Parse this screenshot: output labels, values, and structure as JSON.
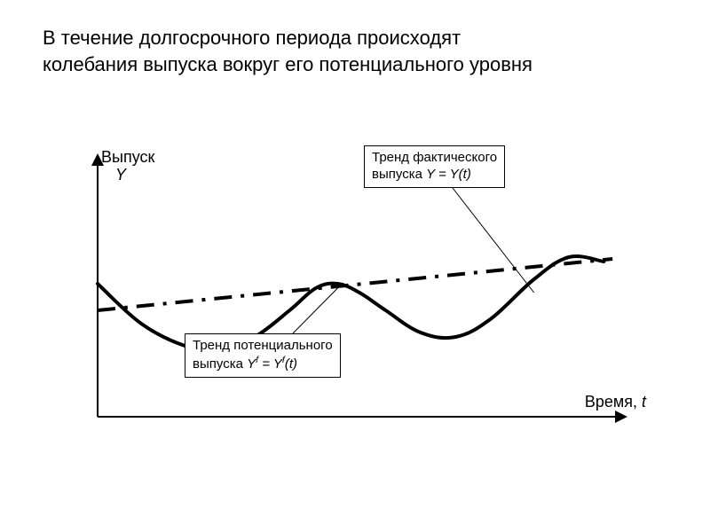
{
  "title": "В течение долгосрочного периода происходят\nколебания выпуска вокруг его потенциального уровня",
  "title_fontsize": 22,
  "title_color": "#000000",
  "chart": {
    "type": "line",
    "background_color": "#ffffff",
    "axis_color": "#000000",
    "axis_line_width": 2,
    "y_axis_label_top": "Выпуск",
    "y_axis_label_var": "Y",
    "x_axis_label": "Время,",
    "x_axis_label_var": "t",
    "axis_label_fontsize": 18,
    "xlim": [
      0,
      600
    ],
    "ylim": [
      0,
      260
    ],
    "series": {
      "actual": {
        "label_line1": "Тренд фактического",
        "label_line2_prefix": "выпуска ",
        "label_formula": "Y = Y(t)",
        "color": "#000000",
        "line_width": 4,
        "dash": "solid",
        "points": [
          [
            0,
            150
          ],
          [
            50,
            105
          ],
          [
            100,
            80
          ],
          [
            140,
            75
          ],
          [
            180,
            90
          ],
          [
            220,
            120
          ],
          [
            250,
            145
          ],
          [
            275,
            150
          ],
          [
            300,
            140
          ],
          [
            330,
            120
          ],
          [
            370,
            95
          ],
          [
            410,
            90
          ],
          [
            450,
            110
          ],
          [
            500,
            155
          ],
          [
            540,
            180
          ],
          [
            580,
            175
          ]
        ]
      },
      "potential": {
        "label_line1": "Тренд потенциального",
        "label_line2_prefix": "выпуска ",
        "label_formula": "Yᶠ = Yᶠ(t)",
        "color": "#000000",
        "line_width": 4,
        "dash": "dash-dot",
        "dash_pattern": "20 10 4 10",
        "start": [
          0,
          120
        ],
        "end": [
          590,
          178
        ]
      }
    },
    "legend": {
      "box_border": "#000000",
      "box_bg": "#ffffff",
      "fontsize": 15,
      "actual_pointer_from": [
        430,
        30
      ],
      "actual_pointer_to": [
        500,
        90
      ],
      "potential_pointer_from": [
        270,
        196
      ],
      "potential_pointer_to": [
        280,
        150
      ]
    }
  }
}
